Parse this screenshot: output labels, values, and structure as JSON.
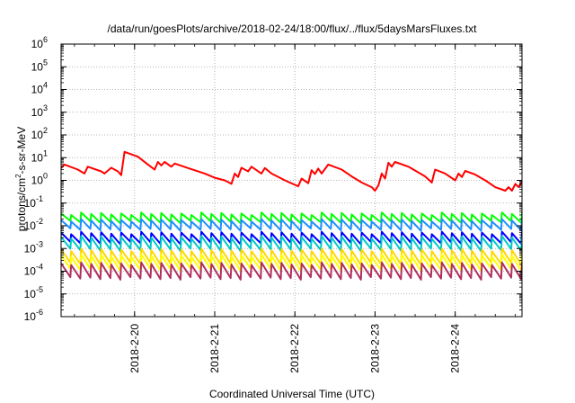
{
  "chart_data": {
    "type": "line",
    "title": "/data/run/goesPlots/archive/2018-02-24/18:00/flux/../flux/5daysMarsFluxes.txt",
    "xlabel": "Coordinated Universal Time (UTC)",
    "ylabel": {
      "base": "protons/cm",
      "sup": "2",
      "tail": "-s-sr-MeV"
    },
    "x_start": "2018-02-19 02:00",
    "x_end": "2018-02-24 20:00",
    "x_ticks": [
      {
        "date": "2018-02-20",
        "label": "2018-2-20"
      },
      {
        "date": "2018-02-21",
        "label": "2018-2-21"
      },
      {
        "date": "2018-02-22",
        "label": "2018-2-22"
      },
      {
        "date": "2018-02-23",
        "label": "2018-2-23"
      },
      {
        "date": "2018-02-24",
        "label": "2018-2-24"
      }
    ],
    "yscale": "log",
    "ylim": [
      1e-06,
      1000000.0
    ],
    "y_ticks": [
      {
        "value": 1e-06,
        "base": "10",
        "exp": "-6"
      },
      {
        "value": 1e-05,
        "base": "10",
        "exp": "-5"
      },
      {
        "value": 0.0001,
        "base": "10",
        "exp": "-4"
      },
      {
        "value": 0.001,
        "base": "10",
        "exp": "-3"
      },
      {
        "value": 0.01,
        "base": "10",
        "exp": "-2"
      },
      {
        "value": 0.1,
        "base": "10",
        "exp": "-1"
      },
      {
        "value": 1,
        "base": "10",
        "exp": "0"
      },
      {
        "value": 10,
        "base": "10",
        "exp": "1"
      },
      {
        "value": 100,
        "base": "10",
        "exp": "2"
      },
      {
        "value": 1000,
        "base": "10",
        "exp": "3"
      },
      {
        "value": 10000,
        "base": "10",
        "exp": "4"
      },
      {
        "value": 100000,
        "base": "10",
        "exp": "5"
      },
      {
        "value": 1000000,
        "base": "10",
        "exp": "6"
      }
    ],
    "grid": true,
    "legend": "none",
    "series": [
      {
        "color": "#ff0000",
        "style": "sawtooth",
        "points": [
          [
            "2018-02-19 02:00",
            3.5
          ],
          [
            "2018-02-19 03:00",
            5.0
          ],
          [
            "2018-02-19 07:00",
            3.0
          ],
          [
            "2018-02-19 09:00",
            2.0
          ],
          [
            "2018-02-19 10:00",
            4.0
          ],
          [
            "2018-02-19 14:00",
            2.5
          ],
          [
            "2018-02-19 15:00",
            2.0
          ],
          [
            "2018-02-19 17:00",
            3.6
          ],
          [
            "2018-02-19 19:00",
            2.5
          ],
          [
            "2018-02-19 20:00",
            1.7
          ],
          [
            "2018-02-19 21:00",
            18.0
          ],
          [
            "2018-02-20 01:00",
            11.0
          ],
          [
            "2018-02-20 04:00",
            5.0
          ],
          [
            "2018-02-20 06:00",
            3.0
          ],
          [
            "2018-02-20 07:00",
            6.5
          ],
          [
            "2018-02-20 08:00",
            4.5
          ],
          [
            "2018-02-20 09:00",
            6.5
          ],
          [
            "2018-02-20 11:00",
            4.0
          ],
          [
            "2018-02-20 12:00",
            5.5
          ],
          [
            "2018-02-20 16:00",
            3.5
          ],
          [
            "2018-02-20 21:00",
            2.0
          ],
          [
            "2018-02-21 00:00",
            1.3
          ],
          [
            "2018-02-21 03:00",
            1.0
          ],
          [
            "2018-02-21 05:00",
            0.7
          ],
          [
            "2018-02-21 06:00",
            2.0
          ],
          [
            "2018-02-21 07:00",
            1.4
          ],
          [
            "2018-02-21 08:00",
            3.6
          ],
          [
            "2018-02-21 10:00",
            2.5
          ],
          [
            "2018-02-21 11:00",
            4.0
          ],
          [
            "2018-02-21 14:00",
            2.0
          ],
          [
            "2018-02-21 15:00",
            3.5
          ],
          [
            "2018-02-21 17:00",
            2.0
          ],
          [
            "2018-02-21 21:00",
            1.0
          ],
          [
            "2018-02-22 01:00",
            0.55
          ],
          [
            "2018-02-22 02:00",
            1.2
          ],
          [
            "2018-02-22 04:00",
            0.75
          ],
          [
            "2018-02-22 05:00",
            2.8
          ],
          [
            "2018-02-22 06:00",
            1.9
          ],
          [
            "2018-02-22 07:00",
            3.3
          ],
          [
            "2018-02-22 08:00",
            2.0
          ],
          [
            "2018-02-22 10:00",
            5.0
          ],
          [
            "2018-02-22 14:00",
            3.0
          ],
          [
            "2018-02-22 17:00",
            1.5
          ],
          [
            "2018-02-22 20:00",
            0.8
          ],
          [
            "2018-02-22 23:00",
            0.5
          ],
          [
            "2018-02-23 00:00",
            0.35
          ],
          [
            "2018-02-23 01:00",
            0.6
          ],
          [
            "2018-02-23 02:00",
            2.0
          ],
          [
            "2018-02-23 03:00",
            1.2
          ],
          [
            "2018-02-23 04:00",
            6.0
          ],
          [
            "2018-02-23 05:00",
            4.0
          ],
          [
            "2018-02-23 06:00",
            6.5
          ],
          [
            "2018-02-23 10:00",
            4.0
          ],
          [
            "2018-02-23 15:00",
            1.5
          ],
          [
            "2018-02-23 17:00",
            0.8
          ],
          [
            "2018-02-23 18:00",
            3.0
          ],
          [
            "2018-02-23 21:00",
            2.0
          ],
          [
            "2018-02-24 00:00",
            1.0
          ],
          [
            "2018-02-24 01:00",
            2.0
          ],
          [
            "2018-02-24 02:00",
            1.4
          ],
          [
            "2018-02-24 03:00",
            2.6
          ],
          [
            "2018-02-24 06:00",
            1.8
          ],
          [
            "2018-02-24 09:00",
            1.0
          ],
          [
            "2018-02-24 12:00",
            0.5
          ],
          [
            "2018-02-24 15:00",
            0.35
          ],
          [
            "2018-02-24 16:00",
            0.5
          ],
          [
            "2018-02-24 17:00",
            0.35
          ],
          [
            "2018-02-24 18:00",
            0.7
          ],
          [
            "2018-02-24 19:00",
            0.5
          ],
          [
            "2018-02-24 20:00",
            0.9
          ]
        ]
      },
      {
        "color": "#00ff00",
        "style": "periodic",
        "period_hours": 3,
        "base": 0.015,
        "peak": 0.035
      },
      {
        "color": "#1e90ff",
        "style": "periodic",
        "period_hours": 3,
        "base": 0.007,
        "peak": 0.018
      },
      {
        "color": "#0000ff",
        "style": "periodic",
        "period_hours": 3,
        "base": 0.0018,
        "peak": 0.005
      },
      {
        "color": "#00c8c8",
        "style": "periodic",
        "period_hours": 3,
        "base": 0.0009,
        "peak": 0.0032
      },
      {
        "color": "#ffd700",
        "style": "periodic",
        "period_hours": 3,
        "base": 0.00022,
        "peak": 0.0009
      },
      {
        "color": "#ffff00",
        "style": "periodic",
        "period_hours": 3,
        "base": 0.00012,
        "peak": 0.0005
      },
      {
        "color": "#b03060",
        "style": "periodic",
        "period_hours": 3,
        "base": 5e-05,
        "peak": 0.00022
      }
    ]
  }
}
